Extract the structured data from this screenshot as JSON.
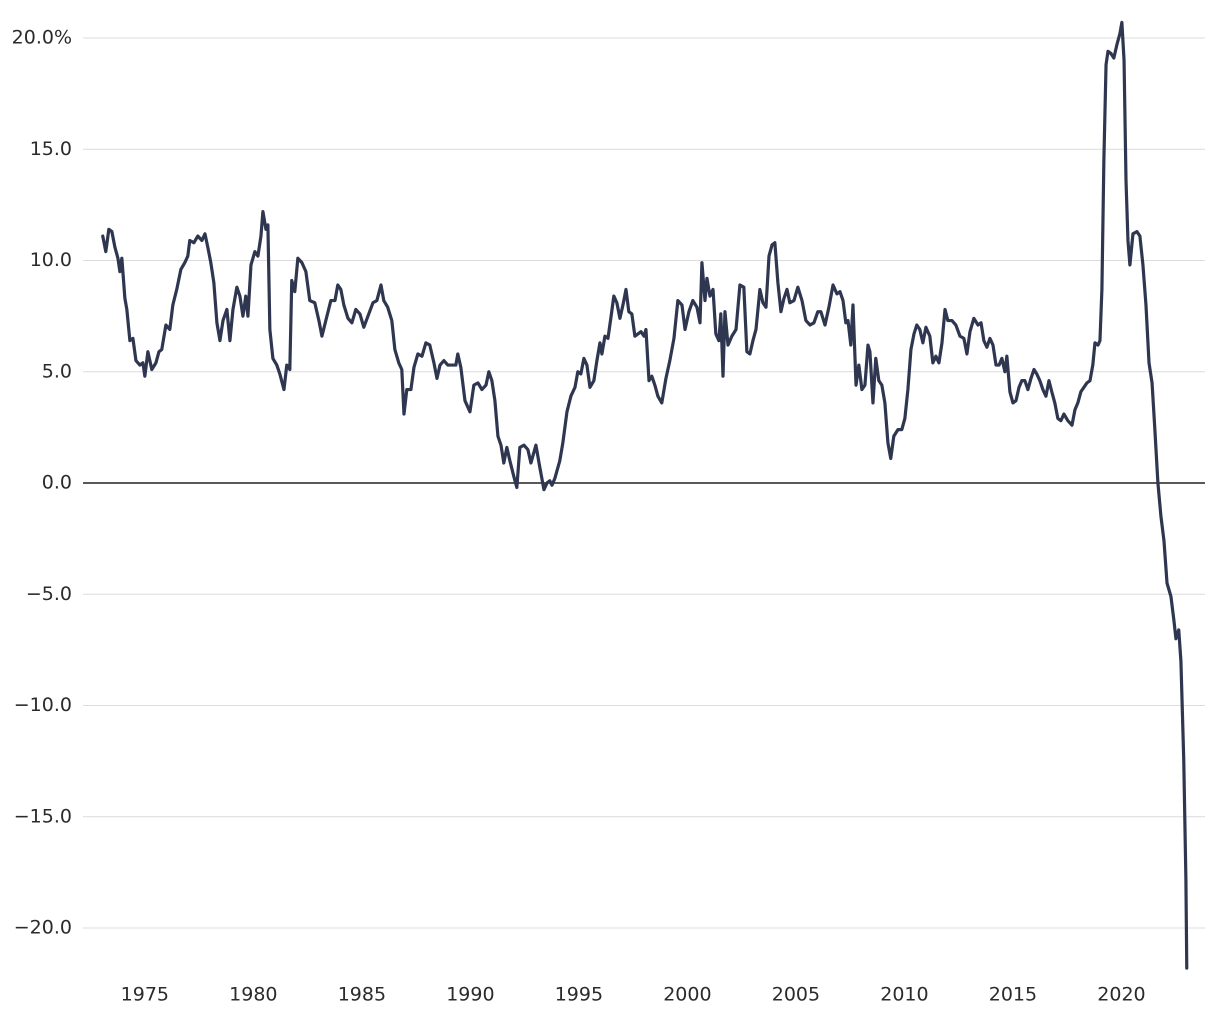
{
  "chart_data": {
    "type": "line",
    "color": "#2f3650",
    "grid": true,
    "xlim": [
      1972.15,
      2023.85
    ],
    "ylim": [
      -22,
      21
    ],
    "xticks": [
      1975,
      1980,
      1985,
      1990,
      1995,
      2000,
      2005,
      2010,
      2015,
      2020
    ],
    "yticks": [
      {
        "value": 20,
        "label": "20.0%"
      },
      {
        "value": 15,
        "label": "15.0"
      },
      {
        "value": 10,
        "label": "10.0"
      },
      {
        "value": 5,
        "label": "5.0"
      },
      {
        "value": 0,
        "label": "0.0"
      },
      {
        "value": -5,
        "label": "−5.0"
      },
      {
        "value": -10,
        "label": "−10.0"
      },
      {
        "value": -15,
        "label": "−15.0"
      },
      {
        "value": -20,
        "label": "−20.0"
      }
    ],
    "x": [
      1973.06,
      1973.2,
      1973.34,
      1973.48,
      1973.62,
      1973.76,
      1973.85,
      1973.94,
      1974.08,
      1974.17,
      1974.31,
      1974.45,
      1974.59,
      1974.77,
      1974.91,
      1975.0,
      1975.14,
      1975.32,
      1975.51,
      1975.65,
      1975.78,
      1975.97,
      1976.15,
      1976.29,
      1976.47,
      1976.66,
      1976.84,
      1976.98,
      1977.07,
      1977.26,
      1977.44,
      1977.63,
      1977.77,
      1977.9,
      1978.04,
      1978.18,
      1978.32,
      1978.46,
      1978.6,
      1978.78,
      1978.92,
      1979.06,
      1979.24,
      1979.38,
      1979.52,
      1979.65,
      1979.75,
      1979.89,
      1980.07,
      1980.21,
      1980.35,
      1980.44,
      1980.58,
      1980.67,
      1980.76,
      1980.9,
      1981.08,
      1981.22,
      1981.41,
      1981.54,
      1981.68,
      1981.77,
      1981.91,
      1982.05,
      1982.24,
      1982.42,
      1982.6,
      1982.83,
      1983.02,
      1983.16,
      1983.39,
      1983.57,
      1983.76,
      1983.89,
      1984.03,
      1984.17,
      1984.36,
      1984.54,
      1984.72,
      1984.91,
      1985.09,
      1985.28,
      1985.51,
      1985.69,
      1985.88,
      1986.01,
      1986.19,
      1986.38,
      1986.52,
      1986.7,
      1986.84,
      1986.94,
      1987.07,
      1987.26,
      1987.4,
      1987.58,
      1987.77,
      1987.95,
      1988.13,
      1988.32,
      1988.46,
      1988.6,
      1988.78,
      1988.96,
      1989.15,
      1989.33,
      1989.42,
      1989.56,
      1989.75,
      1989.98,
      1990.16,
      1990.35,
      1990.53,
      1990.72,
      1990.85,
      1990.99,
      1991.13,
      1991.27,
      1991.41,
      1991.54,
      1991.68,
      1991.82,
      1992.0,
      1992.14,
      1992.28,
      1992.47,
      1992.65,
      1992.79,
      1993.02,
      1993.2,
      1993.39,
      1993.53,
      1993.66,
      1993.76,
      1993.89,
      1994.12,
      1994.26,
      1994.45,
      1994.63,
      1994.82,
      1994.95,
      1995.09,
      1995.23,
      1995.37,
      1995.51,
      1995.69,
      1995.83,
      1995.97,
      1996.06,
      1996.2,
      1996.34,
      1996.47,
      1996.61,
      1996.75,
      1996.89,
      1997.03,
      1997.17,
      1997.3,
      1997.44,
      1997.58,
      1997.72,
      1997.86,
      1998.0,
      1998.09,
      1998.23,
      1998.36,
      1998.5,
      1998.64,
      1998.82,
      1999.01,
      1999.19,
      1999.38,
      1999.56,
      1999.75,
      1999.89,
      2000.07,
      2000.25,
      2000.44,
      2000.58,
      2000.67,
      2000.81,
      2000.9,
      2001.04,
      2001.18,
      2001.31,
      2001.45,
      2001.54,
      2001.64,
      2001.73,
      2001.87,
      2002.05,
      2002.24,
      2002.42,
      2002.6,
      2002.74,
      2002.88,
      2003.02,
      2003.16,
      2003.34,
      2003.48,
      2003.62,
      2003.76,
      2003.9,
      2004.03,
      2004.17,
      2004.31,
      2004.45,
      2004.59,
      2004.72,
      2004.91,
      2005.09,
      2005.28,
      2005.46,
      2005.65,
      2005.83,
      2006.01,
      2006.15,
      2006.34,
      2006.52,
      2006.71,
      2006.89,
      2007.03,
      2007.17,
      2007.3,
      2007.4,
      2007.53,
      2007.63,
      2007.77,
      2007.9,
      2008.04,
      2008.18,
      2008.32,
      2008.41,
      2008.55,
      2008.68,
      2008.82,
      2008.96,
      2009.1,
      2009.24,
      2009.37,
      2009.51,
      2009.7,
      2009.88,
      2010.02,
      2010.16,
      2010.3,
      2010.44,
      2010.57,
      2010.71,
      2010.85,
      2010.99,
      2011.17,
      2011.31,
      2011.45,
      2011.59,
      2011.73,
      2011.87,
      2012.0,
      2012.19,
      2012.37,
      2012.56,
      2012.74,
      2012.88,
      2013.02,
      2013.2,
      2013.39,
      2013.53,
      2013.66,
      2013.8,
      2013.94,
      2014.08,
      2014.22,
      2014.36,
      2014.49,
      2014.63,
      2014.72,
      2014.86,
      2015.0,
      2015.14,
      2015.28,
      2015.41,
      2015.55,
      2015.69,
      2015.83,
      2015.97,
      2016.1,
      2016.24,
      2016.38,
      2016.52,
      2016.66,
      2016.79,
      2016.93,
      2017.07,
      2017.21,
      2017.35,
      2017.53,
      2017.72,
      2017.86,
      2017.99,
      2018.13,
      2018.27,
      2018.41,
      2018.55,
      2018.68,
      2018.78,
      2018.92,
      2019.01,
      2019.1,
      2019.19,
      2019.29,
      2019.38,
      2019.52,
      2019.65,
      2019.79,
      2019.93,
      2020.02,
      2020.12,
      2020.21,
      2020.3,
      2020.39,
      2020.53,
      2020.71,
      2020.85,
      2020.99,
      2021.13,
      2021.27,
      2021.41,
      2021.54,
      2021.68,
      2021.82,
      2021.96,
      2022.1,
      2022.28,
      2022.42,
      2022.51,
      2022.64,
      2022.74,
      2022.87,
      2022.97,
      2023.01
    ],
    "values": [
      11.1,
      10.4,
      11.4,
      11.3,
      10.6,
      10.1,
      9.5,
      10.1,
      8.3,
      7.8,
      6.4,
      6.5,
      5.5,
      5.3,
      5.4,
      4.8,
      5.9,
      5.1,
      5.4,
      5.9,
      6.0,
      7.1,
      6.9,
      8.0,
      8.7,
      9.6,
      9.9,
      10.2,
      10.9,
      10.8,
      11.1,
      10.9,
      11.2,
      10.6,
      9.9,
      9.0,
      7.2,
      6.4,
      7.3,
      7.8,
      6.4,
      7.8,
      8.8,
      8.4,
      7.5,
      8.4,
      7.5,
      9.8,
      10.4,
      10.2,
      11.1,
      12.2,
      11.4,
      11.6,
      6.9,
      5.6,
      5.3,
      4.9,
      4.2,
      5.3,
      5.1,
      9.1,
      8.6,
      10.1,
      9.9,
      9.5,
      8.2,
      8.1,
      7.3,
      6.6,
      7.5,
      8.2,
      8.2,
      8.9,
      8.7,
      8.0,
      7.4,
      7.2,
      7.8,
      7.6,
      7.0,
      7.5,
      8.1,
      8.2,
      8.9,
      8.2,
      7.9,
      7.3,
      6.0,
      5.4,
      5.1,
      3.1,
      4.2,
      4.2,
      5.2,
      5.8,
      5.7,
      6.3,
      6.2,
      5.4,
      4.7,
      5.3,
      5.5,
      5.3,
      5.3,
      5.3,
      5.8,
      5.2,
      3.7,
      3.2,
      4.4,
      4.5,
      4.2,
      4.4,
      5.0,
      4.6,
      3.7,
      2.1,
      1.7,
      0.9,
      1.6,
      1.0,
      0.3,
      -0.2,
      1.6,
      1.7,
      1.5,
      0.9,
      1.7,
      0.7,
      -0.3,
      0.0,
      0.1,
      -0.1,
      0.2,
      1.0,
      1.8,
      3.2,
      3.9,
      4.3,
      5.0,
      4.9,
      5.6,
      5.3,
      4.3,
      4.6,
      5.5,
      6.3,
      5.8,
      6.6,
      6.5,
      7.4,
      8.4,
      8.1,
      7.4,
      8.0,
      8.7,
      7.7,
      7.6,
      6.6,
      6.7,
      6.8,
      6.6,
      6.9,
      4.6,
      4.8,
      4.4,
      3.9,
      3.6,
      4.7,
      5.5,
      6.5,
      8.2,
      8.0,
      6.9,
      7.7,
      8.2,
      7.9,
      7.2,
      9.9,
      8.2,
      9.2,
      8.4,
      8.7,
      6.7,
      6.4,
      7.6,
      4.8,
      7.7,
      6.2,
      6.6,
      6.9,
      8.9,
      8.8,
      5.9,
      5.8,
      6.4,
      6.9,
      8.7,
      8.1,
      7.9,
      10.2,
      10.7,
      10.8,
      9.0,
      7.7,
      8.3,
      8.7,
      8.1,
      8.2,
      8.8,
      8.2,
      7.3,
      7.1,
      7.2,
      7.7,
      7.7,
      7.1,
      7.9,
      8.9,
      8.5,
      8.6,
      8.2,
      7.2,
      7.3,
      6.2,
      8.0,
      4.4,
      5.3,
      4.2,
      4.4,
      6.2,
      5.9,
      3.6,
      5.6,
      4.6,
      4.4,
      3.6,
      1.8,
      1.1,
      2.1,
      2.4,
      2.4,
      2.9,
      4.2,
      6.0,
      6.7,
      7.1,
      6.9,
      6.3,
      7.0,
      6.6,
      5.4,
      5.7,
      5.4,
      6.3,
      7.8,
      7.3,
      7.3,
      7.1,
      6.6,
      6.5,
      5.8,
      6.8,
      7.4,
      7.1,
      7.2,
      6.4,
      6.1,
      6.5,
      6.2,
      5.3,
      5.3,
      5.6,
      5.0,
      5.7,
      4.1,
      3.6,
      3.7,
      4.3,
      4.6,
      4.6,
      4.2,
      4.7,
      5.1,
      4.9,
      4.6,
      4.2,
      3.9,
      4.6,
      4.1,
      3.6,
      2.9,
      2.8,
      3.1,
      2.8,
      2.6,
      3.3,
      3.6,
      4.1,
      4.3,
      4.5,
      4.6,
      5.3,
      6.3,
      6.2,
      6.4,
      8.7,
      14.5,
      18.8,
      19.4,
      19.3,
      19.1,
      19.7,
      20.2,
      20.7,
      19.0,
      13.6,
      10.9,
      9.8,
      11.2,
      11.3,
      11.1,
      9.8,
      8.0,
      5.4,
      4.5,
      2.4,
      0.0,
      -1.5,
      -2.6,
      -4.5,
      -5.1,
      -6.2,
      -7.0,
      -6.6,
      -8.0,
      -12.4,
      -17.8,
      -21.8
    ]
  }
}
